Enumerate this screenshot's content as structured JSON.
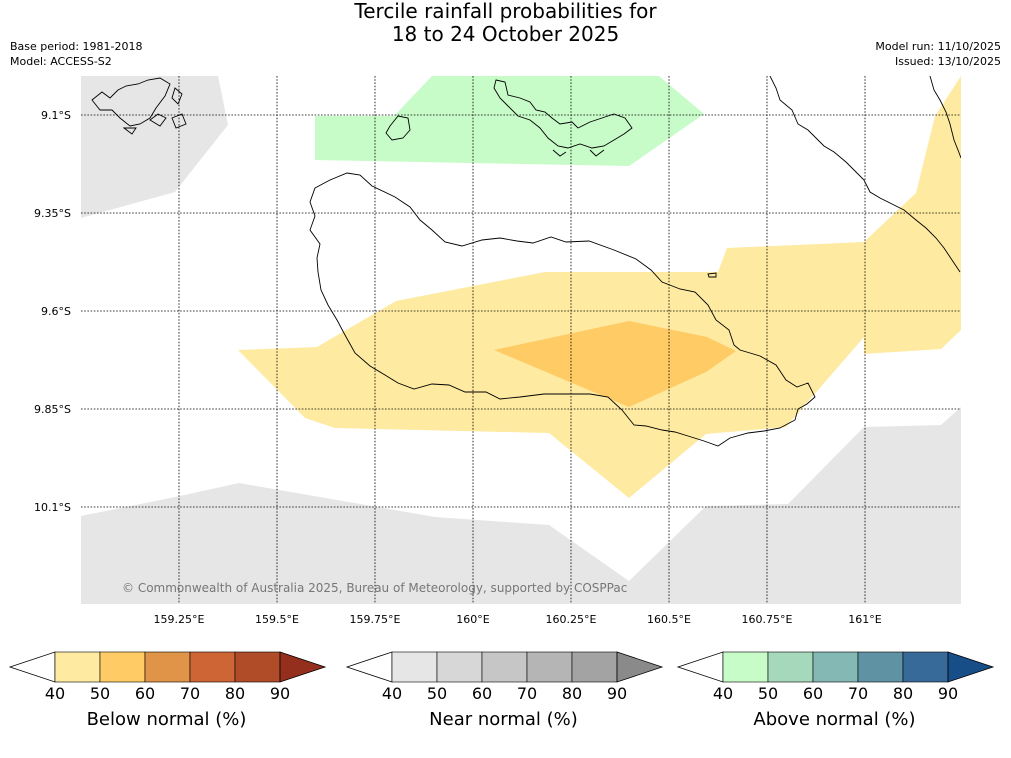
{
  "header": {
    "title_line1": "Tercile rainfall probabilities for",
    "title_line2": "18 to 24 October 2025",
    "base_period": "Base period: 1981-2018",
    "model": "Model: ACCESS-S2",
    "model_run": "Model run: 11/10/2025",
    "issued": "Issued: 13/10/2025"
  },
  "map": {
    "lat_labels": [
      "9.1°S",
      "9.35°S",
      "9.6°S",
      "9.85°S",
      "10.1°S"
    ],
    "lon_labels": [
      "159.25°E",
      "159.5°E",
      "159.75°E",
      "160°E",
      "160.25°E",
      "160.5°E",
      "160.75°E",
      "161°E"
    ],
    "copyright": "© Commonwealth of Australia 2025, Bureau of Meteorology, supported by COSPPac",
    "colors": {
      "near_normal_40": "#e6e6e6",
      "below_normal_40": "#feeaa0",
      "below_normal_50": "#fecb65",
      "above_normal_40": "#c7fbc8"
    }
  },
  "colorbars": [
    {
      "label": "Below normal (%)",
      "ticks": [
        "40",
        "50",
        "60",
        "70",
        "80",
        "90"
      ],
      "colors": [
        "#ffffff",
        "#feeaa0",
        "#fecb65",
        "#e09448",
        "#cd6535",
        "#b04c28",
        "#932f1c"
      ]
    },
    {
      "label": "Near normal (%)",
      "ticks": [
        "40",
        "50",
        "60",
        "70",
        "80",
        "90"
      ],
      "colors": [
        "#ffffff",
        "#e6e6e6",
        "#d7d7d7",
        "#c6c6c6",
        "#b5b5b5",
        "#a3a3a3",
        "#8a8a8a"
      ]
    },
    {
      "label": "Above normal (%)",
      "ticks": [
        "40",
        "50",
        "60",
        "70",
        "80",
        "90"
      ],
      "colors": [
        "#ffffff",
        "#c7fbc8",
        "#a6d9bc",
        "#84b8b4",
        "#5f92a2",
        "#386a99",
        "#174e87"
      ]
    }
  ]
}
